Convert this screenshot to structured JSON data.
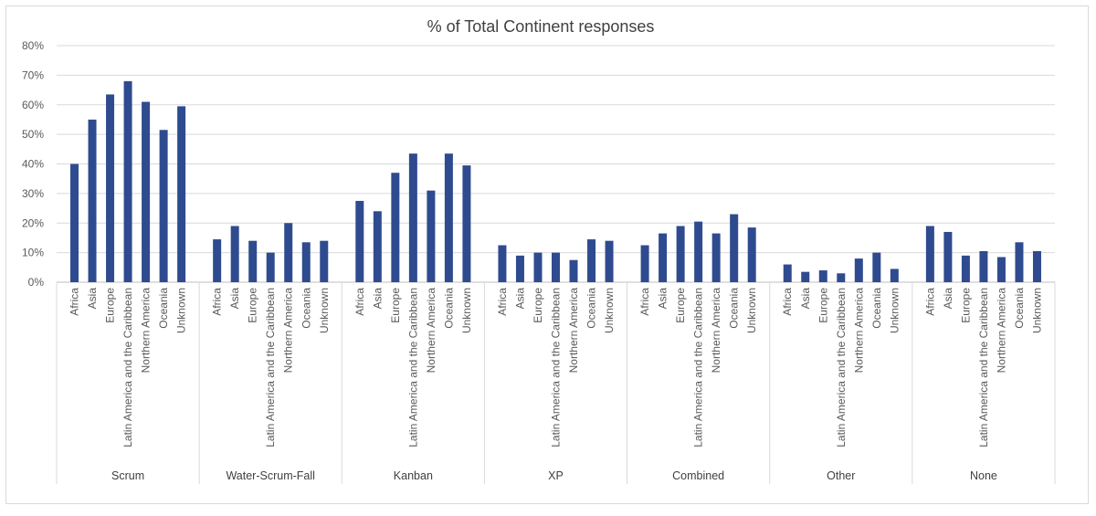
{
  "chart_data": {
    "type": "bar",
    "title": "% of Total Continent responses",
    "xlabel": "",
    "ylabel": "",
    "ylim": [
      0,
      0.8
    ],
    "yticks": [
      "0%",
      "10%",
      "20%",
      "30%",
      "40%",
      "50%",
      "60%",
      "70%",
      "80%"
    ],
    "grid": true,
    "legend": "none",
    "bar_color": "#2f4b8f",
    "categories": [
      "Africa",
      "Asia",
      "Europe",
      "Latin America and the Caribbean",
      "Northern America",
      "Oceania",
      "Unknown"
    ],
    "groups": [
      {
        "label": "Scrum",
        "values": [
          0.4,
          0.55,
          0.635,
          0.68,
          0.61,
          0.515,
          0.595
        ]
      },
      {
        "label": "Water-Scrum-Fall",
        "values": [
          0.145,
          0.19,
          0.14,
          0.1,
          0.2,
          0.135,
          0.14
        ]
      },
      {
        "label": "Kanban",
        "values": [
          0.275,
          0.24,
          0.37,
          0.435,
          0.31,
          0.435,
          0.395
        ]
      },
      {
        "label": "XP",
        "values": [
          0.125,
          0.09,
          0.1,
          0.1,
          0.075,
          0.145,
          0.14
        ]
      },
      {
        "label": "Combined",
        "values": [
          0.125,
          0.165,
          0.19,
          0.205,
          0.165,
          0.23,
          0.185
        ]
      },
      {
        "label": "Other",
        "values": [
          0.06,
          0.035,
          0.04,
          0.03,
          0.08,
          0.1,
          0.045
        ]
      },
      {
        "label": "None",
        "values": [
          0.19,
          0.17,
          0.09,
          0.105,
          0.085,
          0.135,
          0.105
        ]
      }
    ]
  }
}
